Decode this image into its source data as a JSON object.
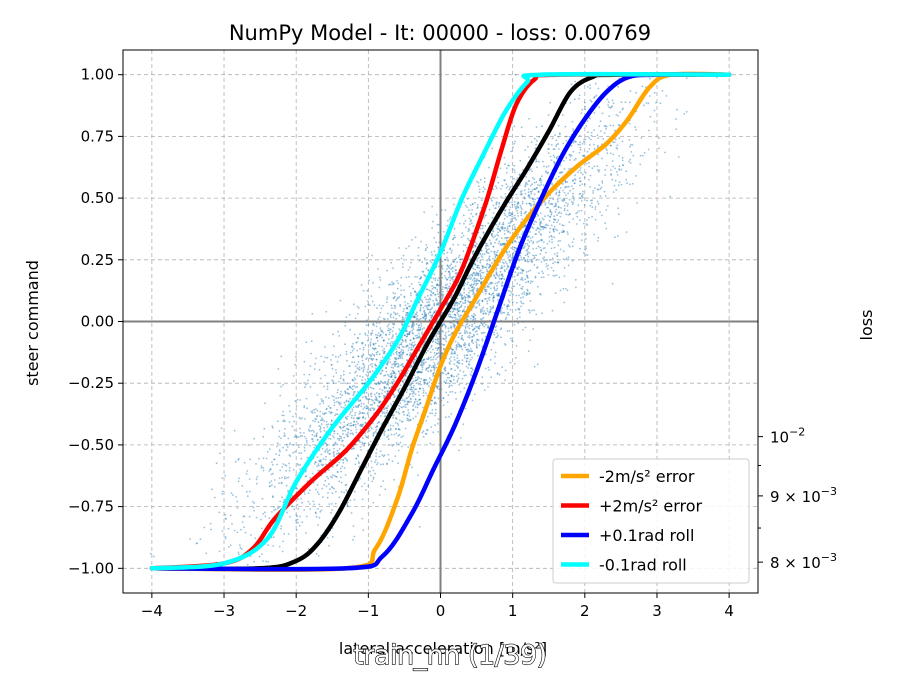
{
  "caption": "train_nn (1/39)",
  "chart_data": {
    "type": "line",
    "title": "NumPy Model - It: 00000 - loss: 0.00769",
    "xlabel": "lateral acceleration [m/s²]",
    "ylabel": "steer command",
    "y2label": "loss",
    "xlim": [
      -4.4,
      4.4
    ],
    "ylim": [
      -1.1,
      1.1
    ],
    "xticks": [
      -4,
      -3,
      -2,
      -1,
      0,
      1,
      2,
      3,
      4
    ],
    "xtick_labels": [
      "−4",
      "−3",
      "−2",
      "−1",
      "0",
      "1",
      "2",
      "3",
      "4"
    ],
    "yticks": [
      -1.0,
      -0.75,
      -0.5,
      -0.25,
      0.0,
      0.25,
      0.5,
      0.75,
      1.0
    ],
    "ytick_labels": [
      "−1.00",
      "−0.75",
      "−0.50",
      "−0.25",
      "0.00",
      "0.25",
      "0.50",
      "0.75",
      "1.00"
    ],
    "y2_scale": "log",
    "y2_ticks": [
      {
        "value": 0.01,
        "label": "10",
        "exp": "−2"
      },
      {
        "value": 0.009,
        "label": "9 × 10",
        "exp": "−3"
      },
      {
        "value": 0.008,
        "label": "8 × 10",
        "exp": "−3"
      }
    ],
    "grid": true,
    "legend_position": "lower-right",
    "scatter": {
      "color": "#1f77b4",
      "description": "training samples",
      "center_slope": 0.37,
      "spread_x": 0.55,
      "count": 5200
    },
    "series": [
      {
        "name": "black-baseline",
        "color": "#000000",
        "in_legend": false,
        "x": [
          -4,
          -2.5,
          -2.0,
          -1.7,
          -1.4,
          -1.1,
          -0.8,
          -0.5,
          -0.2,
          0,
          0.2,
          0.4,
          0.6,
          0.9,
          1.2,
          1.5,
          1.8,
          2.1,
          2.4,
          4
        ],
        "y": [
          -1.0,
          -1.0,
          -0.97,
          -0.9,
          -0.77,
          -0.6,
          -0.43,
          -0.27,
          -0.1,
          0.0,
          0.1,
          0.22,
          0.33,
          0.48,
          0.62,
          0.77,
          0.93,
          0.99,
          1.0,
          1.0
        ]
      },
      {
        "name": "-2m/s² error",
        "color": "#ffa500",
        "in_legend": true,
        "x": [
          -4,
          -1.3,
          -0.9,
          -0.6,
          -0.4,
          -0.2,
          0,
          0.2,
          0.5,
          0.8,
          1.1,
          1.5,
          1.9,
          2.3,
          2.6,
          2.9,
          3.2,
          4
        ],
        "y": [
          -1.0,
          -1.0,
          -0.92,
          -0.72,
          -0.52,
          -0.35,
          -0.18,
          -0.05,
          0.1,
          0.25,
          0.38,
          0.52,
          0.63,
          0.72,
          0.82,
          0.95,
          1.0,
          1.0
        ]
      },
      {
        "name": "+2m/s² error",
        "color": "#ff0000",
        "in_legend": true,
        "x": [
          -4,
          -3.0,
          -2.6,
          -2.3,
          -1.8,
          -1.3,
          -0.9,
          -0.6,
          -0.3,
          0,
          0.25,
          0.45,
          0.65,
          0.85,
          1.05,
          1.3,
          1.6,
          4
        ],
        "y": [
          -1.0,
          -0.98,
          -0.92,
          -0.8,
          -0.65,
          -0.52,
          -0.38,
          -0.25,
          -0.1,
          0.05,
          0.18,
          0.33,
          0.5,
          0.7,
          0.88,
          0.98,
          1.0,
          1.0
        ]
      },
      {
        "name": "+0.1rad roll",
        "color": "#0000ff",
        "in_legend": true,
        "x": [
          -4,
          -1.3,
          -0.8,
          -0.4,
          -0.1,
          0.2,
          0.5,
          0.8,
          1.1,
          1.4,
          1.7,
          2.0,
          2.3,
          2.6,
          3.0,
          4
        ],
        "y": [
          -1.0,
          -1.0,
          -0.95,
          -0.78,
          -0.6,
          -0.42,
          -0.2,
          0.05,
          0.3,
          0.5,
          0.68,
          0.82,
          0.93,
          0.99,
          1.0,
          1.0
        ]
      },
      {
        "name": "-0.1rad roll",
        "color": "#00ffff",
        "in_legend": true,
        "x": [
          -4,
          -3.0,
          -2.4,
          -2.0,
          -1.5,
          -1.0,
          -0.6,
          -0.3,
          0,
          0.3,
          0.6,
          0.9,
          1.2,
          1.4,
          4
        ],
        "y": [
          -1.0,
          -0.98,
          -0.88,
          -0.65,
          -0.43,
          -0.25,
          -0.08,
          0.1,
          0.28,
          0.5,
          0.68,
          0.85,
          0.97,
          1.0,
          1.0
        ]
      }
    ]
  }
}
